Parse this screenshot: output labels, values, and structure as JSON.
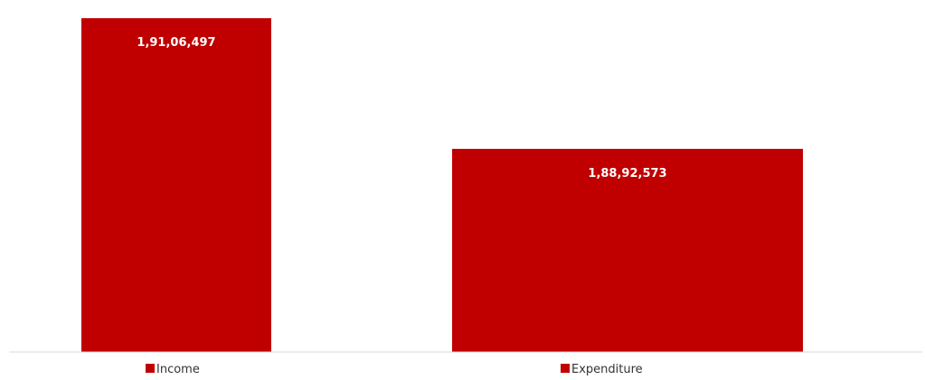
{
  "chart_data": {
    "type": "bar",
    "categories": [
      "Income",
      "Expenditure"
    ],
    "values": [
      19106497,
      18892573
    ],
    "value_labels": [
      "1,91,06,497",
      "1,88,92,573"
    ],
    "title": "",
    "xlabel": "",
    "ylabel": "",
    "ylim": [
      18560000,
      19120000
    ],
    "grid": false,
    "legend": "bottom",
    "legend_entries": [
      "Income",
      "Expenditure"
    ],
    "bar_color": "#c00000"
  }
}
